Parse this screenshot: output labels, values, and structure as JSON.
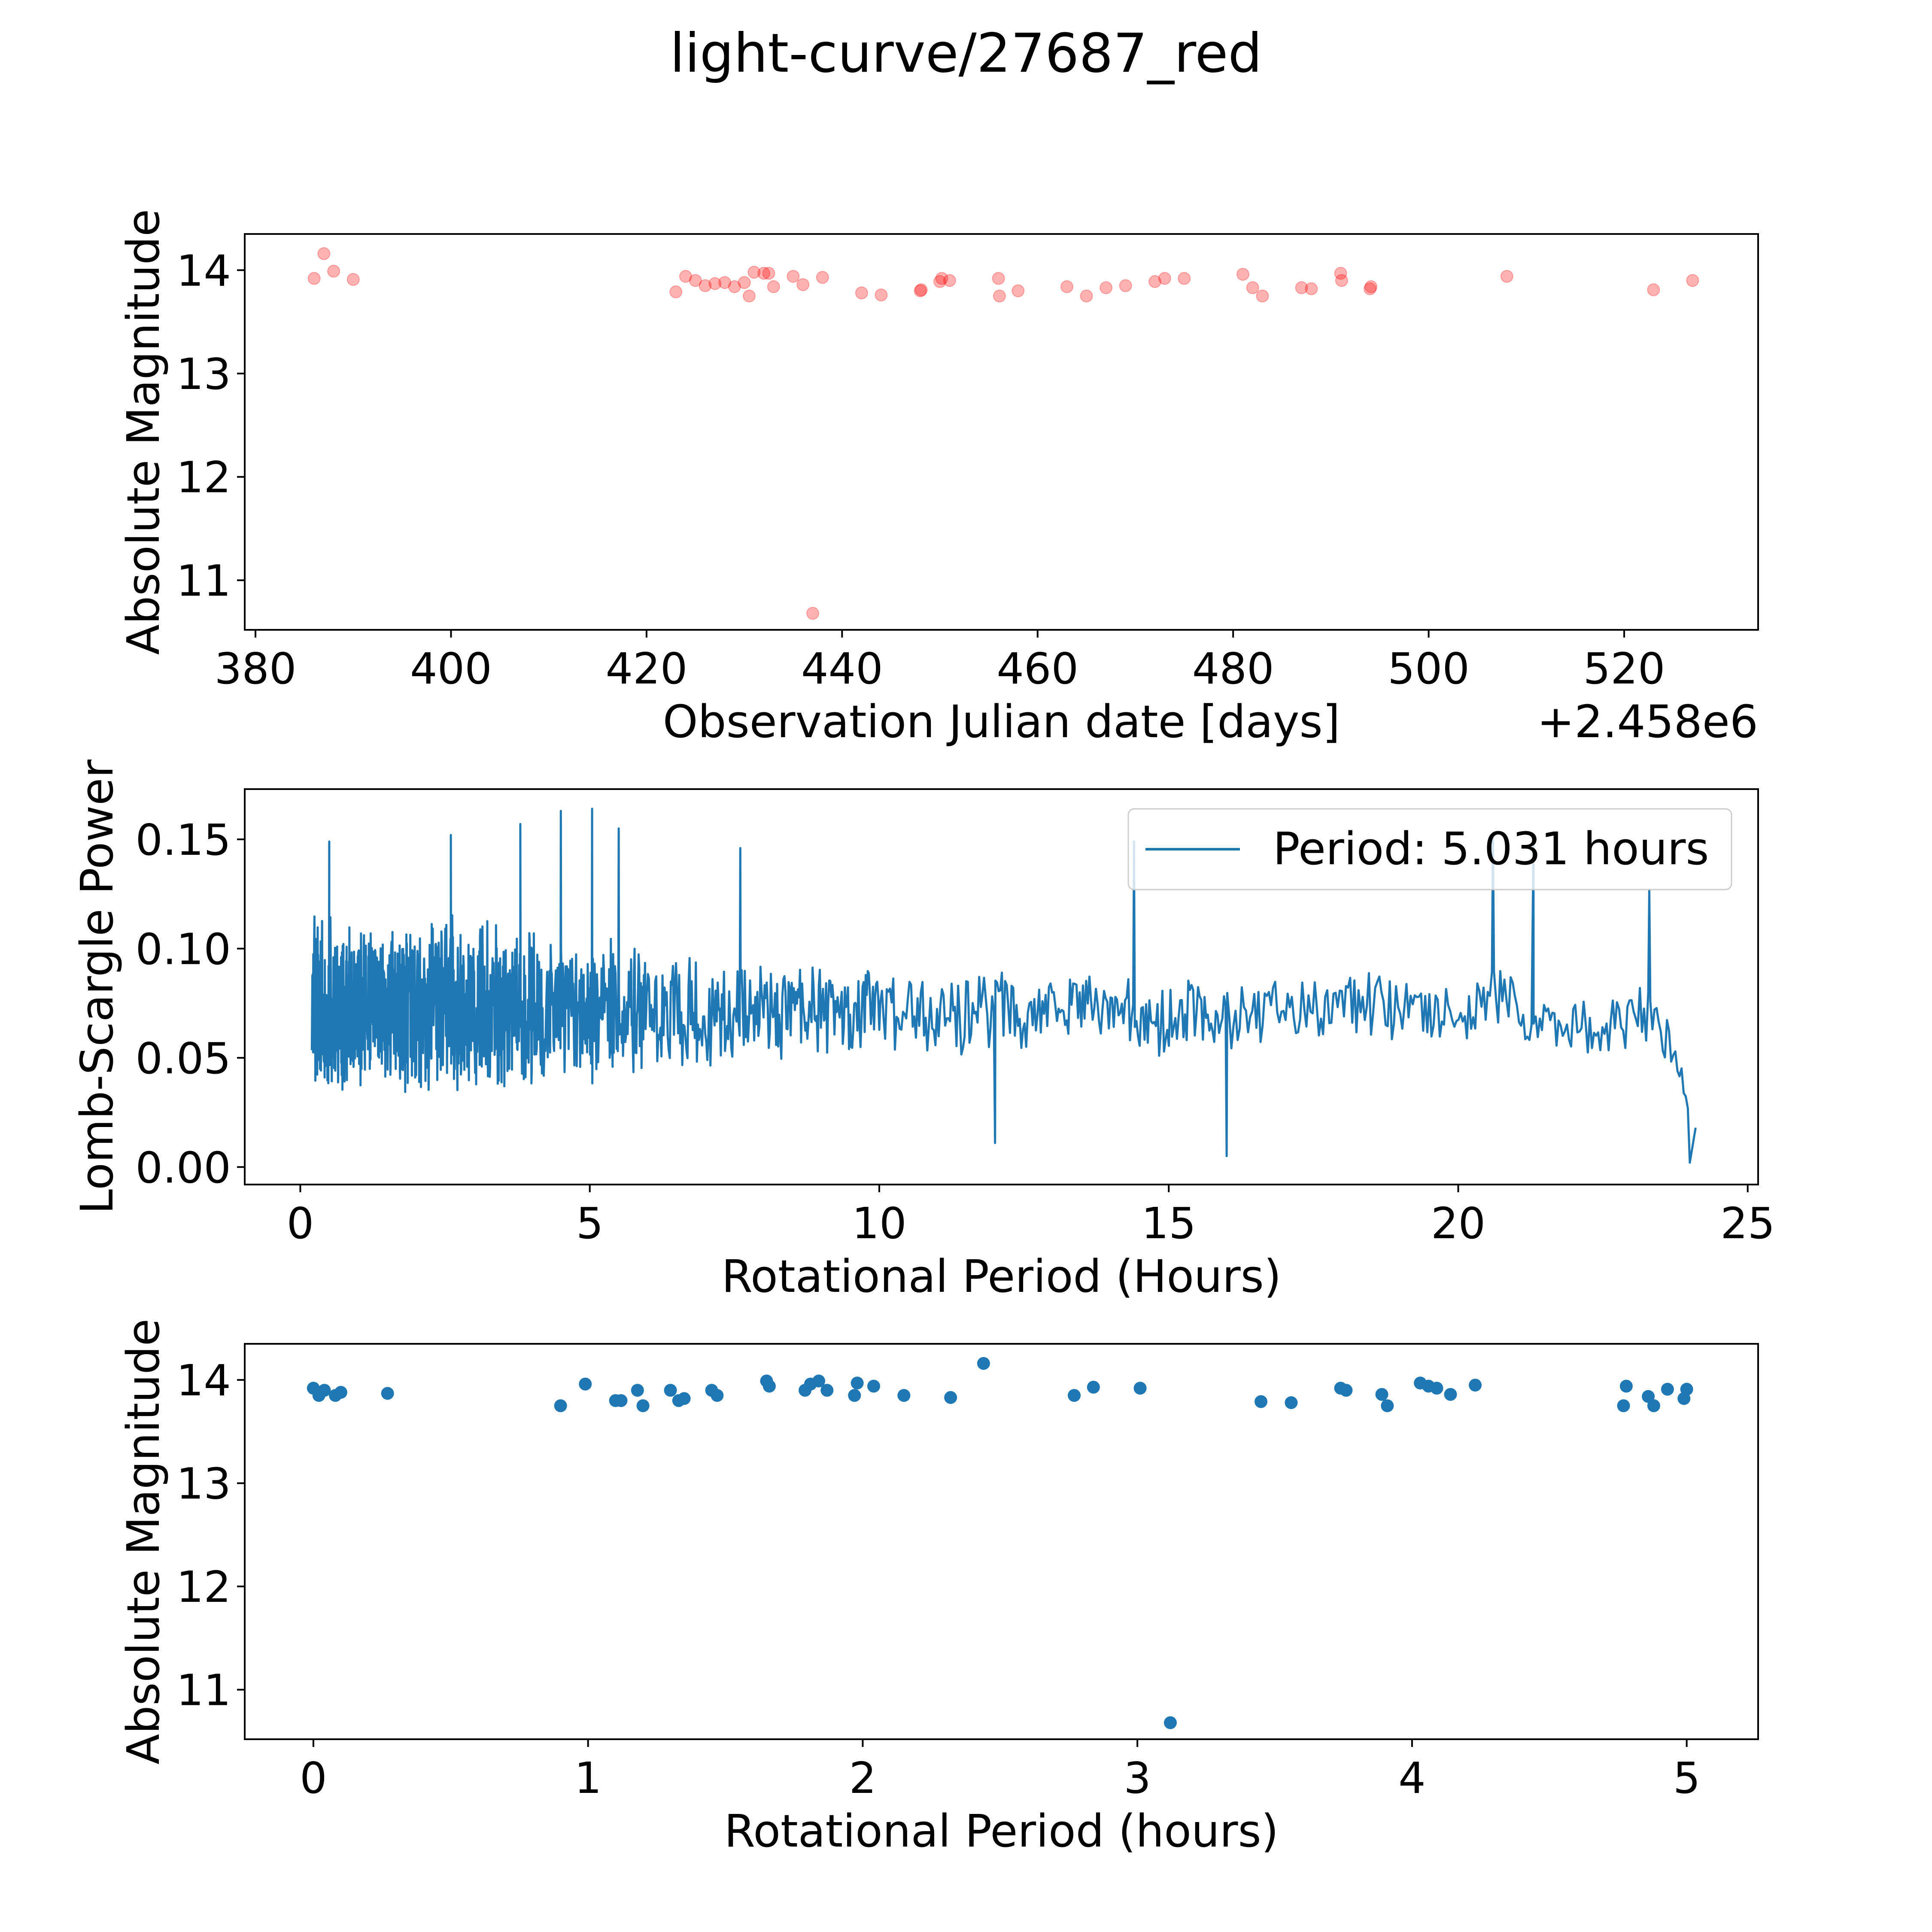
{
  "figure": {
    "title": "light-curve/27687_red"
  },
  "chart_data": [
    {
      "type": "scatter",
      "name": "light-curve",
      "xlabel": "Observation Julian date [days]",
      "ylabel": "Absolute Magnitude",
      "offset_label": "+2.458e6",
      "xlim": [
        378.9,
        533.7
      ],
      "ylim": [
        10.52,
        14.35
      ],
      "xticks": [
        380,
        400,
        420,
        440,
        460,
        480,
        500,
        520
      ],
      "yticks": [
        11,
        12,
        13,
        14
      ],
      "color": "#ff0000",
      "x": [
        386.0,
        387.0,
        388.0,
        390.0,
        423.0,
        424.0,
        425.0,
        426.0,
        427.0,
        428.0,
        429.0,
        430.0,
        430.5,
        431.0,
        432.0,
        432.5,
        433.0,
        435.0,
        436.0,
        437.0,
        438.0,
        442.0,
        444.0,
        448.0,
        448.1,
        450.0,
        450.2,
        451.0,
        456.0,
        456.1,
        458.0,
        463.0,
        465.0,
        467.0,
        469.0,
        472.0,
        473.0,
        475.0,
        481.0,
        482.0,
        483.0,
        487.0,
        488.0,
        491.0,
        491.1,
        494.0,
        494.1,
        508.0,
        523.0,
        527.0
      ],
      "y": [
        13.92,
        14.16,
        13.99,
        13.91,
        13.79,
        13.94,
        13.9,
        13.85,
        13.87,
        13.88,
        13.84,
        13.88,
        13.75,
        13.98,
        13.97,
        13.97,
        13.84,
        13.94,
        13.86,
        10.68,
        13.93,
        13.78,
        13.76,
        13.8,
        13.81,
        13.89,
        13.92,
        13.9,
        13.92,
        13.75,
        13.8,
        13.84,
        13.75,
        13.83,
        13.85,
        13.89,
        13.92,
        13.92,
        13.96,
        13.83,
        13.75,
        13.83,
        13.82,
        13.97,
        13.9,
        13.82,
        13.84,
        13.94,
        13.81,
        13.9
      ]
    },
    {
      "type": "line",
      "name": "lomb-scargle-periodogram",
      "xlabel": "Rotational Period (Hours)",
      "ylabel": "Lomb-Scargle Power",
      "xlim": [
        -0.96,
        25.18
      ],
      "ylim": [
        -0.008,
        0.173
      ],
      "xticks": [
        0,
        5,
        10,
        15,
        20,
        25
      ],
      "yticks": [
        0.0,
        0.05,
        0.1,
        0.15
      ],
      "ytick_labels": [
        "0.00",
        "0.05",
        "0.10",
        "0.15"
      ],
      "color": "#1f77b4",
      "legend": {
        "label": "Period: 5.031 hours",
        "loc": "upper right"
      },
      "control_points": {
        "x": [
          0.2,
          2.0,
          4.0,
          5.0,
          6.0,
          7.0,
          8.0,
          9.0,
          10.0,
          11.0,
          12.0,
          13.0,
          14.0,
          15.0,
          16.0,
          17.0,
          18.0,
          19.0,
          20.0,
          20.6,
          21.0,
          22.0,
          23.0,
          23.4,
          23.8,
          24.0
        ],
        "mid": [
          0.075,
          0.075,
          0.074,
          0.072,
          0.072,
          0.071,
          0.072,
          0.072,
          0.071,
          0.071,
          0.07,
          0.072,
          0.074,
          0.068,
          0.066,
          0.071,
          0.075,
          0.073,
          0.068,
          0.08,
          0.07,
          0.063,
          0.068,
          0.07,
          0.05,
          0.02
        ],
        "amp": [
          0.04,
          0.042,
          0.04,
          0.036,
          0.03,
          0.026,
          0.024,
          0.022,
          0.022,
          0.021,
          0.022,
          0.02,
          0.022,
          0.022,
          0.02,
          0.018,
          0.016,
          0.016,
          0.015,
          0.02,
          0.017,
          0.014,
          0.016,
          0.018,
          0.012,
          0.005
        ]
      },
      "features": [
        {
          "x": 5.04,
          "y": 0.164
        },
        {
          "x": 4.5,
          "y": 0.163
        },
        {
          "x": 3.8,
          "y": 0.157
        },
        {
          "x": 5.5,
          "y": 0.155
        },
        {
          "x": 0.5,
          "y": 0.149
        },
        {
          "x": 2.6,
          "y": 0.152
        },
        {
          "x": 7.6,
          "y": 0.146
        },
        {
          "x": 14.4,
          "y": 0.149
        },
        {
          "x": 20.6,
          "y": 0.151
        },
        {
          "x": 21.3,
          "y": 0.148
        },
        {
          "x": 23.3,
          "y": 0.127
        },
        {
          "x": 12.0,
          "y": 0.011
        },
        {
          "x": 16.0,
          "y": 0.005
        },
        {
          "x": 24.0,
          "y": 0.002
        },
        {
          "x": 24.1,
          "y": 0.018
        }
      ]
    },
    {
      "type": "scatter",
      "name": "phase-folded",
      "xlabel": "Rotational Period (hours)",
      "ylabel": "Absolute Magnitude",
      "xlim": [
        -0.25,
        5.26
      ],
      "ylim": [
        10.52,
        14.35
      ],
      "xticks": [
        0,
        1,
        2,
        3,
        4,
        5
      ],
      "yticks": [
        11,
        12,
        13,
        14
      ],
      "color": "#1f77b4",
      "x": [
        0.0,
        0.02,
        0.04,
        0.08,
        0.1,
        0.27,
        0.9,
        0.99,
        1.1,
        1.12,
        1.18,
        1.2,
        1.3,
        1.33,
        1.35,
        1.45,
        1.47,
        1.65,
        1.66,
        1.79,
        1.81,
        1.84,
        1.87,
        1.97,
        1.98,
        2.04,
        2.15,
        2.32,
        2.44,
        2.77,
        2.84,
        3.01,
        3.12,
        3.45,
        3.56,
        3.74,
        3.76,
        3.89,
        3.91,
        4.03,
        4.06,
        4.09,
        4.14,
        4.23,
        4.77,
        4.78,
        4.86,
        4.88,
        4.93,
        4.99,
        5.0
      ],
      "y": [
        13.92,
        13.85,
        13.9,
        13.85,
        13.88,
        13.87,
        13.75,
        13.96,
        13.8,
        13.8,
        13.9,
        13.75,
        13.9,
        13.8,
        13.82,
        13.9,
        13.85,
        13.99,
        13.94,
        13.9,
        13.96,
        13.99,
        13.9,
        13.85,
        13.97,
        13.94,
        13.85,
        13.83,
        14.16,
        13.85,
        13.93,
        13.92,
        10.68,
        13.79,
        13.78,
        13.92,
        13.9,
        13.86,
        13.75,
        13.97,
        13.94,
        13.92,
        13.86,
        13.95,
        13.75,
        13.94,
        13.84,
        13.75,
        13.91,
        13.82,
        13.91
      ]
    }
  ]
}
